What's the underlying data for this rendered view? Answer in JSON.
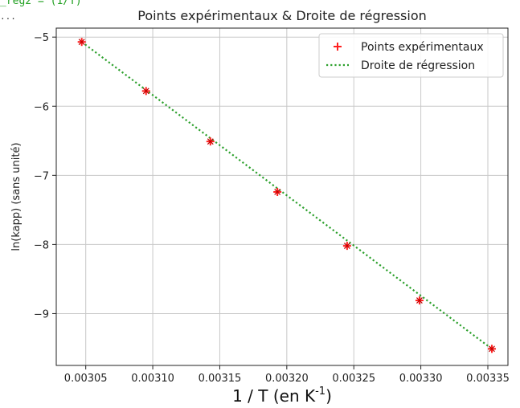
{
  "header_fragment": "_reg2 = (1/T)",
  "header_dots": "...",
  "chart_data": {
    "type": "scatter",
    "title": "Points expérimentaux & Droite de régression",
    "xlabel": "1 / T (en K",
    "xlabel_sup": "-1",
    "xlabel_close": ")",
    "ylabel": "ln(kapp) (sans unité)",
    "xlim": [
      0.003028,
      0.003365
    ],
    "ylim": [
      -9.75,
      -4.87
    ],
    "xticks": [
      0.00305,
      0.0031,
      0.00315,
      0.0032,
      0.00325,
      0.0033,
      0.00335
    ],
    "xtick_labels": [
      "0.00305",
      "0.00310",
      "0.00315",
      "0.00320",
      "0.00325",
      "0.00330",
      "0.00335"
    ],
    "yticks": [
      -5,
      -6,
      -7,
      -8,
      -9
    ],
    "ytick_labels": [
      "−5",
      "−6",
      "−7",
      "−8",
      "−9"
    ],
    "grid": true,
    "legend_position": "top-right",
    "series": [
      {
        "name": "Points expérimentaux",
        "kind": "markers",
        "marker": "+",
        "color": "#ff2020",
        "x": [
          0.003047,
          0.003095,
          0.003143,
          0.003193,
          0.003245,
          0.003299,
          0.003353
        ],
        "y": [
          -5.07,
          -5.78,
          -6.51,
          -7.24,
          -8.02,
          -8.81,
          -9.51
        ]
      },
      {
        "name": "Droite de régression",
        "kind": "line",
        "style": "dotted",
        "color": "#2ca02c",
        "x": [
          0.003047,
          0.003353
        ],
        "y": [
          -5.07,
          -9.51
        ]
      }
    ]
  }
}
